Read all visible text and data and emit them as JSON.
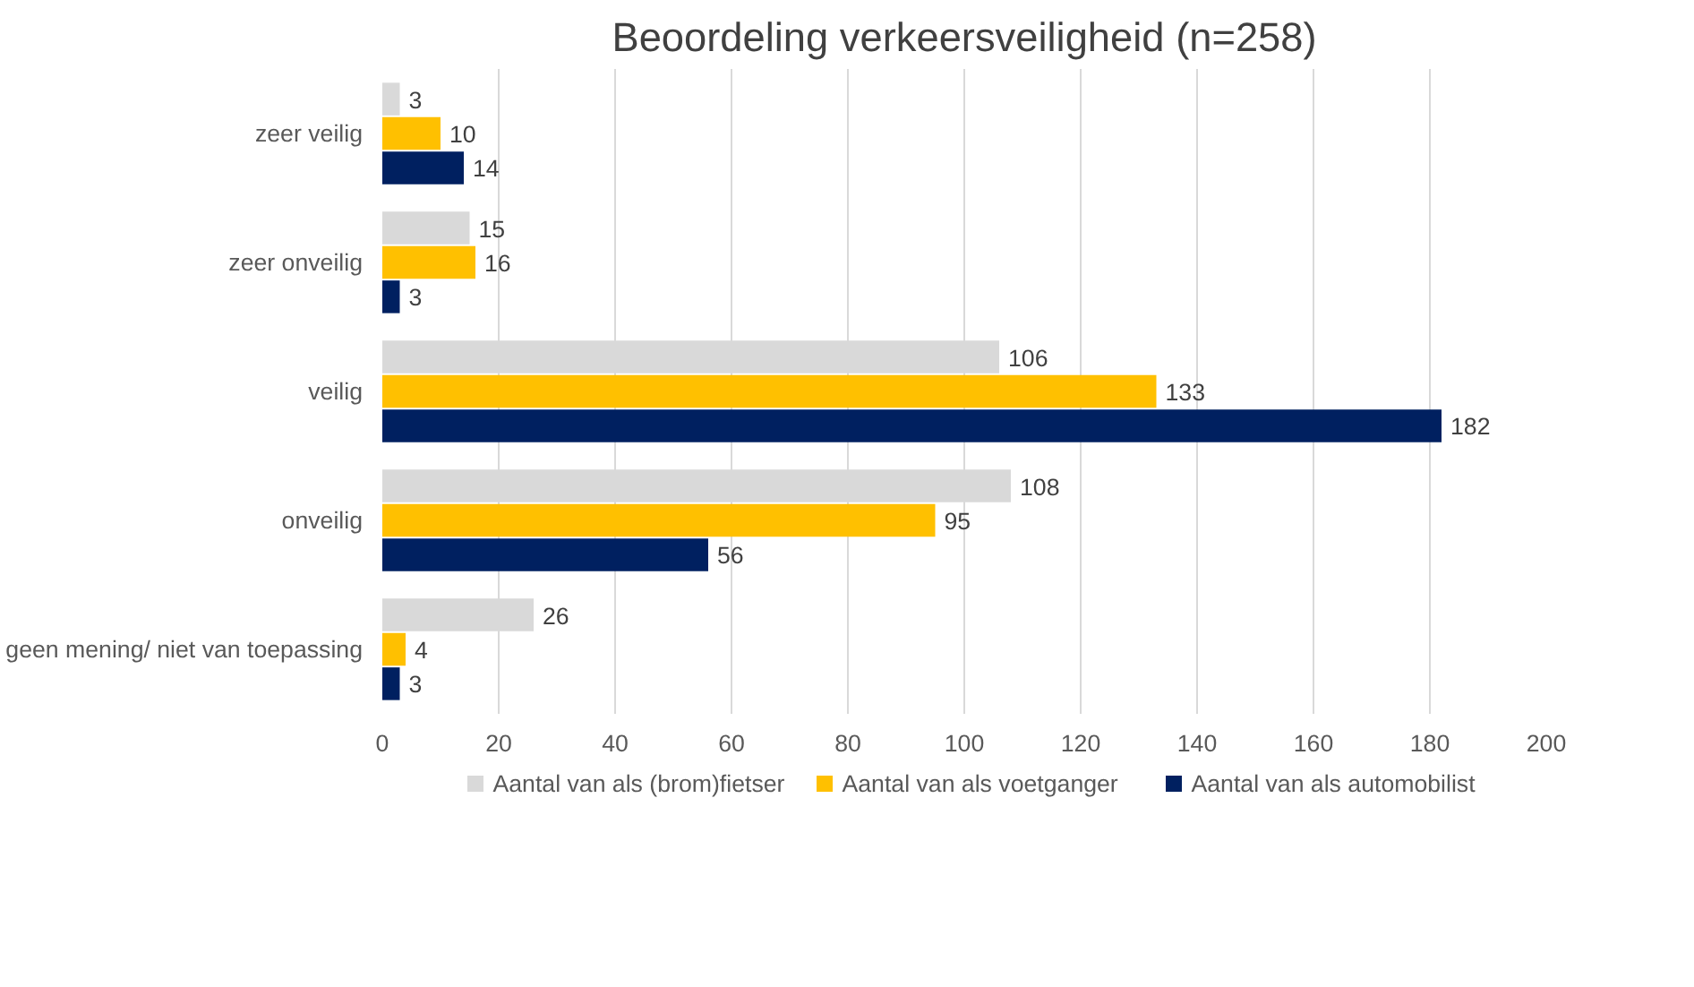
{
  "chart_data": {
    "type": "bar",
    "orientation": "horizontal",
    "title": "Beoordeling verkeersveiligheid (n=258)",
    "categories": [
      "zeer veilig",
      "zeer onveilig",
      "veilig",
      "onveilig",
      "geen mening/ niet van toepassing"
    ],
    "series": [
      {
        "name": "Aantal van als (brom)fietser",
        "color": "#d9d9d9",
        "values": [
          3,
          15,
          106,
          108,
          26
        ]
      },
      {
        "name": "Aantal van als voetganger",
        "color": "#ffc000",
        "values": [
          10,
          16,
          133,
          95,
          4
        ]
      },
      {
        "name": "Aantal van als automobilist",
        "color": "#002060",
        "values": [
          14,
          3,
          182,
          56,
          3
        ]
      }
    ],
    "xlim": [
      0,
      200
    ],
    "xticks": [
      0,
      20,
      40,
      60,
      80,
      100,
      120,
      140,
      160,
      180,
      200
    ],
    "grid": "x",
    "legend": "bottom",
    "data_labels": true
  }
}
